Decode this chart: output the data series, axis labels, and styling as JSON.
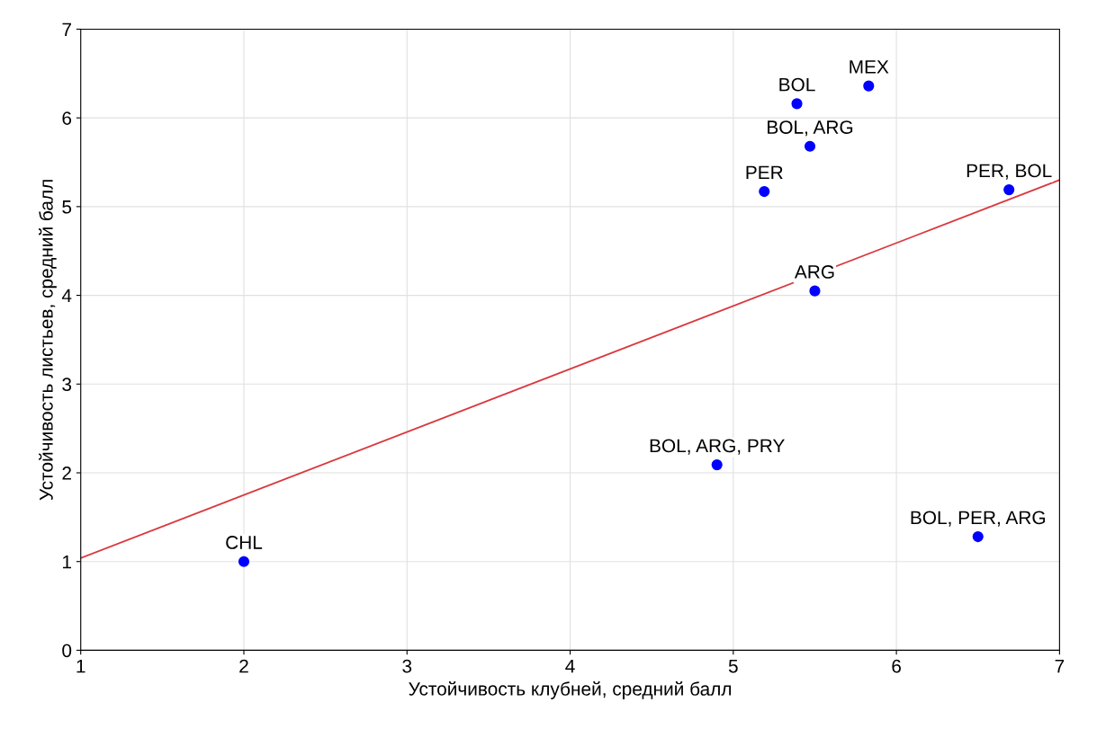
{
  "chart_data": {
    "type": "scatter",
    "xlabel": "Устойчивость клубней, средний балл",
    "ylabel": "Устойчивость листьев, средний балл",
    "series": [
      {
        "color": "#0000ff",
        "marker": "circle",
        "x": [
          2.0,
          4.9,
          6.5,
          5.5,
          5.19,
          6.69,
          5.39,
          5.47,
          5.83
        ],
        "values": [
          1.0,
          2.09,
          1.28,
          4.05,
          5.17,
          5.19,
          6.16,
          5.68,
          6.36
        ]
      },
      {
        "type": "line",
        "color": "#d9393e",
        "x": [
          1,
          7
        ],
        "values": [
          1.04,
          5.3
        ]
      }
    ],
    "annotations": [
      {
        "text": "CHL",
        "x": 2.0,
        "y": 1.0
      },
      {
        "text": "BOL, ARG, PRY",
        "x": 4.9,
        "y": 2.09
      },
      {
        "text": "BOL, PER, ARG",
        "x": 6.5,
        "y": 1.28
      },
      {
        "text": "ARG",
        "x": 5.5,
        "y": 4.05
      },
      {
        "text": "PER",
        "x": 5.19,
        "y": 5.17
      },
      {
        "text": "PER, BOL",
        "x": 6.69,
        "y": 5.19
      },
      {
        "text": "BOL",
        "x": 5.39,
        "y": 6.16
      },
      {
        "text": "BOL, ARG",
        "x": 5.47,
        "y": 5.68
      },
      {
        "text": "MEX",
        "x": 5.83,
        "y": 6.36
      }
    ],
    "xlim": [
      1,
      7
    ],
    "xticks": [
      1,
      2,
      3,
      4,
      5,
      6,
      7
    ],
    "ylim": [
      0,
      7
    ],
    "yticks": [
      0,
      1,
      2,
      3,
      4,
      5,
      6,
      7
    ],
    "grid": true
  }
}
